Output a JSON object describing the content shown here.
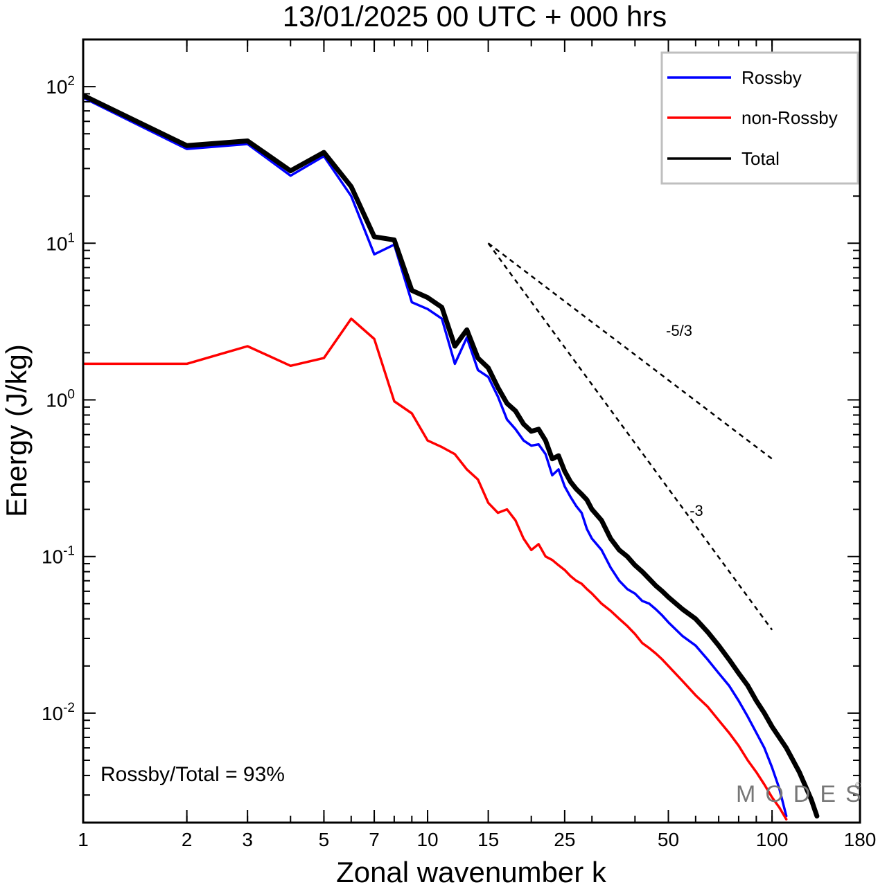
{
  "chart_data": {
    "type": "line",
    "title": "13/01/2025  00 UTC  + 000 hrs",
    "xlabel": "Zonal wavenumber k",
    "ylabel": "Energy (J/kg)",
    "xscale": "log",
    "yscale": "log",
    "xlim": [
      1,
      180
    ],
    "ylim": [
      0.002,
      200
    ],
    "xticks": [
      1,
      2,
      3,
      5,
      7,
      10,
      15,
      25,
      50,
      100,
      180
    ],
    "xtick_labels": [
      "1",
      "2",
      "3",
      "5",
      "7",
      "10",
      "15",
      "25",
      "50",
      "100",
      "180"
    ],
    "yticks": [
      {
        "value": 100,
        "base": "10",
        "exp": "2"
      },
      {
        "value": 10,
        "base": "10",
        "exp": "1"
      },
      {
        "value": 1,
        "base": "10",
        "exp": "0"
      },
      {
        "value": 0.1,
        "base": "10",
        "exp": "-1"
      },
      {
        "value": 0.01,
        "base": "10",
        "exp": "-2"
      }
    ],
    "grid": false,
    "legend_position": "top-right",
    "series": [
      {
        "name": "Rossby",
        "color": "#0000ff",
        "x": [
          1,
          2,
          3,
          4,
          5,
          6,
          7,
          8,
          9,
          10,
          11,
          12,
          13,
          14,
          15,
          16,
          17,
          18,
          19,
          20,
          21,
          22,
          23,
          24,
          25,
          26,
          27,
          28,
          29,
          30,
          32,
          34,
          36,
          38,
          40,
          42,
          44,
          46,
          48,
          50,
          55,
          60,
          65,
          70,
          75,
          80,
          85,
          90,
          95,
          100,
          105,
          110
        ],
        "y": [
          85,
          40,
          43,
          27,
          36,
          20,
          8.5,
          9.8,
          4.2,
          3.8,
          3.3,
          1.7,
          2.5,
          1.55,
          1.4,
          1.05,
          0.75,
          0.65,
          0.55,
          0.51,
          0.52,
          0.45,
          0.33,
          0.36,
          0.28,
          0.24,
          0.21,
          0.19,
          0.15,
          0.13,
          0.11,
          0.085,
          0.07,
          0.062,
          0.058,
          0.052,
          0.05,
          0.046,
          0.042,
          0.038,
          0.031,
          0.027,
          0.022,
          0.018,
          0.015,
          0.012,
          0.0095,
          0.0075,
          0.006,
          0.0045,
          0.0033,
          0.0022
        ]
      },
      {
        "name": "non-Rossby",
        "color": "#ff0000",
        "x": [
          1,
          2,
          3,
          4,
          5,
          6,
          7,
          8,
          9,
          10,
          11,
          12,
          13,
          14,
          15,
          16,
          17,
          18,
          19,
          20,
          21,
          22,
          23,
          24,
          25,
          26,
          27,
          28,
          29,
          30,
          32,
          34,
          36,
          38,
          40,
          42,
          44,
          46,
          48,
          50,
          55,
          60,
          65,
          70,
          75,
          80,
          85,
          90,
          95,
          100,
          105,
          110
        ],
        "y": [
          1.7,
          1.7,
          2.2,
          1.65,
          1.85,
          3.3,
          2.45,
          0.98,
          0.82,
          0.55,
          0.5,
          0.45,
          0.36,
          0.31,
          0.22,
          0.19,
          0.2,
          0.17,
          0.13,
          0.11,
          0.12,
          0.1,
          0.095,
          0.088,
          0.082,
          0.075,
          0.07,
          0.067,
          0.062,
          0.058,
          0.05,
          0.045,
          0.04,
          0.036,
          0.032,
          0.028,
          0.026,
          0.024,
          0.022,
          0.02,
          0.016,
          0.013,
          0.011,
          0.009,
          0.0075,
          0.0062,
          0.005,
          0.0042,
          0.0035,
          0.0029,
          0.0025,
          0.0021
        ]
      },
      {
        "name": "Total",
        "color": "#000000",
        "x": [
          1,
          2,
          3,
          4,
          5,
          6,
          7,
          8,
          9,
          10,
          11,
          12,
          13,
          14,
          15,
          16,
          17,
          18,
          19,
          20,
          21,
          22,
          23,
          24,
          25,
          26,
          27,
          28,
          29,
          30,
          32,
          34,
          36,
          38,
          40,
          42,
          44,
          46,
          48,
          50,
          55,
          60,
          65,
          70,
          75,
          80,
          85,
          90,
          95,
          100,
          110,
          120,
          130,
          135
        ],
        "y": [
          88,
          42,
          45,
          29,
          38,
          23,
          11,
          10.5,
          5,
          4.5,
          3.9,
          2.2,
          2.8,
          1.85,
          1.6,
          1.2,
          0.95,
          0.85,
          0.7,
          0.63,
          0.65,
          0.55,
          0.42,
          0.44,
          0.35,
          0.3,
          0.27,
          0.25,
          0.23,
          0.2,
          0.17,
          0.13,
          0.11,
          0.1,
          0.088,
          0.08,
          0.072,
          0.065,
          0.06,
          0.055,
          0.046,
          0.04,
          0.033,
          0.027,
          0.022,
          0.018,
          0.015,
          0.012,
          0.01,
          0.0082,
          0.006,
          0.0042,
          0.0028,
          0.0022
        ]
      }
    ],
    "reference_lines": [
      {
        "label": "-5/3",
        "x": [
          15,
          100
        ],
        "y": [
          10,
          0.42
        ]
      },
      {
        "label": "-3",
        "x": [
          15,
          100
        ],
        "y": [
          10,
          0.034
        ]
      }
    ],
    "annotations": {
      "ratio_text": "Rossby/Total = 93%",
      "watermark": "MODES",
      "watermark_mark": "©"
    }
  }
}
